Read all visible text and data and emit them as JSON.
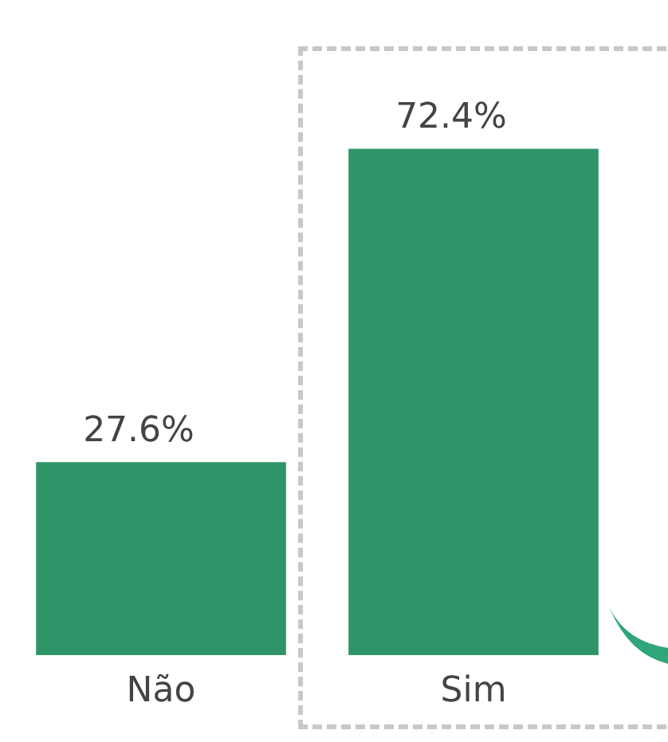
{
  "chart_data": {
    "type": "bar",
    "categories": [
      "Não",
      "Sim"
    ],
    "values": [
      27.6,
      72.4
    ],
    "colors": [
      "#2f9467",
      "#2f9467"
    ],
    "value_labels": [
      "27.6%",
      "72.4%"
    ],
    "grid": false,
    "legend": false
  }
}
